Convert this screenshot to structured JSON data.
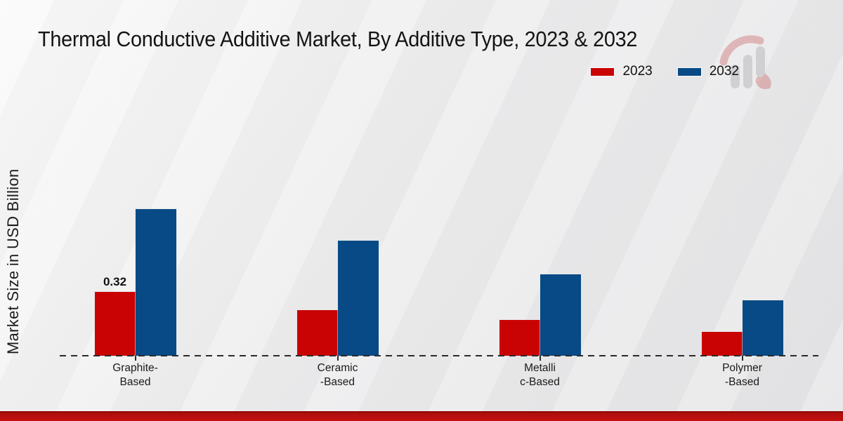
{
  "page": {
    "title": "Thermal Conductive Additive Market, By Additive Type, 2023 & 2032"
  },
  "legend": {
    "items": [
      {
        "label": "2023",
        "color": "#c90303"
      },
      {
        "label": "2032",
        "color": "#074a85"
      }
    ]
  },
  "y_axis": {
    "label": "Market Size in USD Billion"
  },
  "watermark": {
    "name": "market-research-future-logo",
    "gray": "#8f8f98",
    "red": "#c23b3b"
  },
  "footer": {
    "accent_color": "#b00d0d"
  },
  "chart_data": {
    "type": "bar",
    "title": "Thermal Conductive Additive Market, By Additive Type, 2023 & 2032",
    "categories": [
      "Graphite-\nBased",
      "Ceramic\n-Based",
      "Metalli\nc-Based",
      "Polymer\n-Based"
    ],
    "series": [
      {
        "name": "2023",
        "color": "#c90303",
        "values": [
          0.32,
          0.23,
          0.18,
          0.12
        ]
      },
      {
        "name": "2032",
        "color": "#074a85",
        "values": [
          0.74,
          0.58,
          0.41,
          0.28
        ]
      }
    ],
    "xlabel": "",
    "ylabel": "Market Size in USD Billion",
    "ylim": [
      0,
      1.3
    ],
    "grid": false,
    "baseline_style": "dashed",
    "legend_position": "top-right",
    "annotations": [
      {
        "series_index": 0,
        "category_index": 0,
        "text": "0.32"
      }
    ]
  }
}
